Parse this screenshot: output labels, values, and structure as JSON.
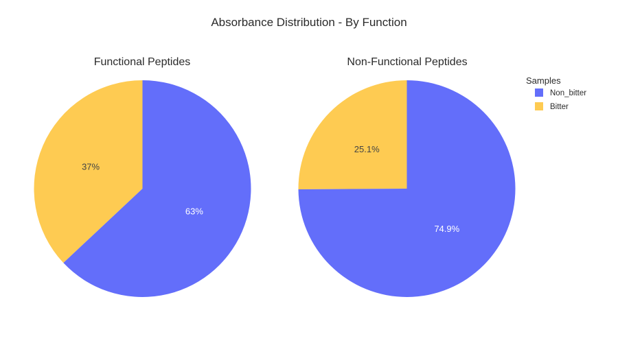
{
  "chart_data": {
    "type": "pie",
    "title": "Absorbance Distribution - By Function",
    "legend": {
      "title": "Samples",
      "placement": "top-right",
      "entries": [
        {
          "label": "Non_bitter",
          "color": "#636EFA"
        },
        {
          "label": "Bitter",
          "color": "#FECB52"
        }
      ]
    },
    "charts": [
      {
        "title": "Functional Peptides",
        "slices": [
          {
            "label": "Non_bitter",
            "value": 63.0,
            "text": "63%",
            "color": "#636EFA",
            "text_color": "#ffffff"
          },
          {
            "label": "Bitter",
            "value": 37.0,
            "text": "37%",
            "color": "#FECB52",
            "text_color": "#444444"
          }
        ]
      },
      {
        "title": "Non-Functional Peptides",
        "slices": [
          {
            "label": "Non_bitter",
            "value": 74.9,
            "text": "74.9%",
            "color": "#636EFA",
            "text_color": "#ffffff"
          },
          {
            "label": "Bitter",
            "value": 25.1,
            "text": "25.1%",
            "color": "#FECB52",
            "text_color": "#444444"
          }
        ]
      }
    ]
  }
}
